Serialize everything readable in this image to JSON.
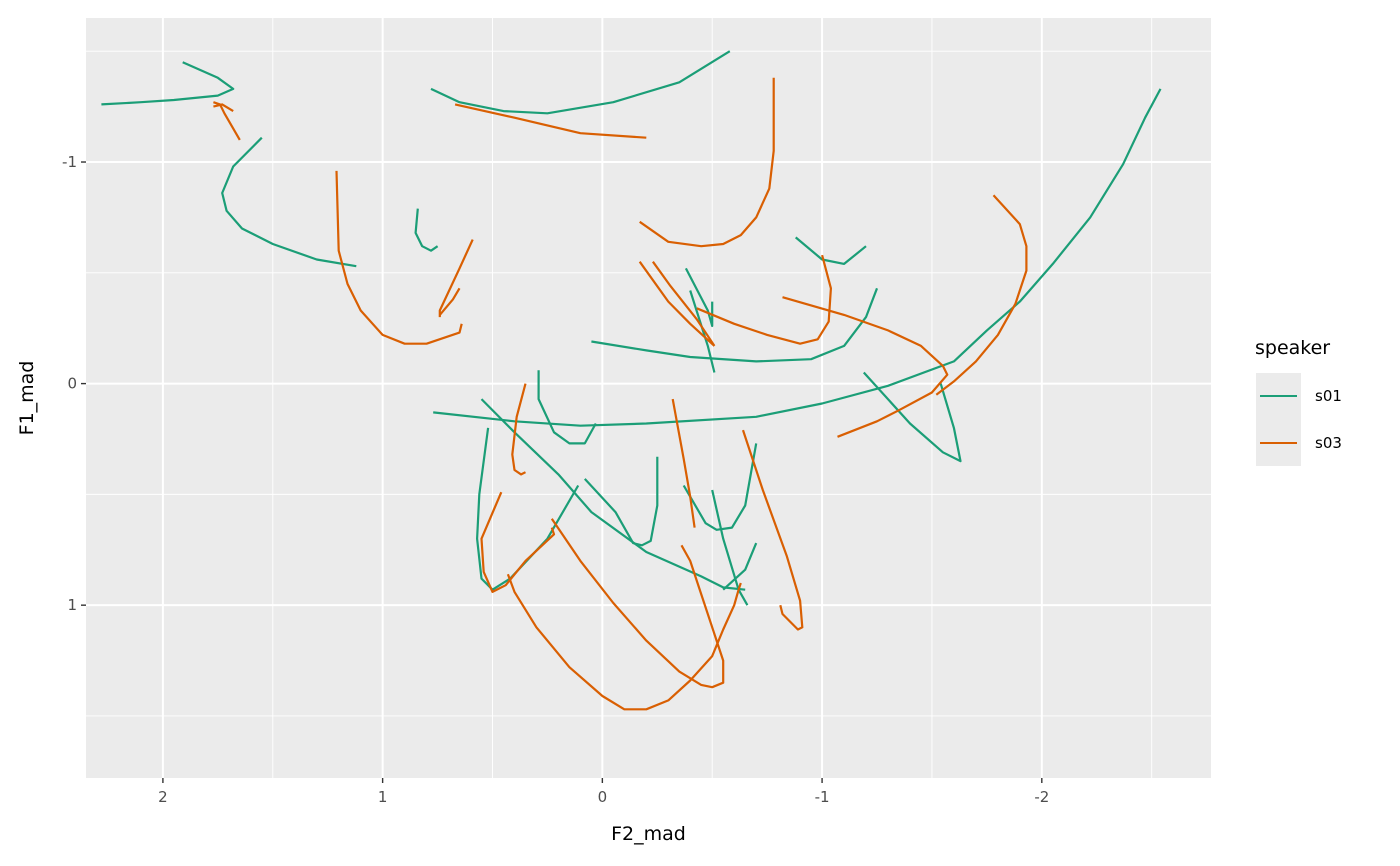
{
  "chart_data": {
    "type": "line",
    "title": "",
    "xlabel": "F2_mad",
    "ylabel": "F1_mad",
    "x_reversed": true,
    "y_reversed": true,
    "xlim": [
      2.35,
      -2.77
    ],
    "ylim": [
      -1.65,
      1.78
    ],
    "x_ticks": [
      2,
      1,
      0,
      -1,
      -2
    ],
    "x_tick_labels": [
      "2",
      "1",
      "0",
      "-1",
      "-2"
    ],
    "y_ticks": [
      -1,
      0,
      1
    ],
    "y_tick_labels": [
      "-1",
      "0",
      "1"
    ],
    "grid": true,
    "legend": {
      "title": "speaker",
      "position": "right",
      "entries": [
        {
          "name": "s01",
          "color": "#1b9e77"
        },
        {
          "name": "s03",
          "color": "#d95f02"
        }
      ]
    },
    "series": [
      {
        "name": "s01",
        "color": "#1b9e77",
        "tracks": [
          [
            [
              1.91,
              -1.45
            ],
            [
              1.75,
              -1.38
            ],
            [
              1.68,
              -1.33
            ],
            [
              1.75,
              -1.3
            ],
            [
              1.95,
              -1.28
            ],
            [
              2.1,
              -1.27
            ],
            [
              2.28,
              -1.26
            ]
          ],
          [
            [
              1.55,
              -1.11
            ],
            [
              1.68,
              -0.98
            ],
            [
              1.73,
              -0.86
            ],
            [
              1.71,
              -0.78
            ],
            [
              1.64,
              -0.7
            ],
            [
              1.5,
              -0.63
            ],
            [
              1.3,
              -0.56
            ],
            [
              1.12,
              -0.53
            ]
          ],
          [
            [
              0.78,
              -1.33
            ],
            [
              0.65,
              -1.27
            ],
            [
              0.45,
              -1.23
            ],
            [
              0.25,
              -1.22
            ],
            [
              -0.05,
              -1.27
            ],
            [
              -0.35,
              -1.36
            ],
            [
              -0.58,
              -1.5
            ]
          ],
          [
            [
              0.84,
              -0.79
            ],
            [
              0.85,
              -0.68
            ],
            [
              0.82,
              -0.62
            ],
            [
              0.78,
              -0.6
            ],
            [
              0.75,
              -0.62
            ]
          ],
          [
            [
              0.77,
              0.13
            ],
            [
              0.4,
              0.17
            ],
            [
              0.1,
              0.19
            ],
            [
              -0.2,
              0.18
            ],
            [
              -0.7,
              0.15
            ],
            [
              -1.0,
              0.09
            ],
            [
              -1.3,
              0.01
            ],
            [
              -1.6,
              -0.1
            ],
            [
              -1.75,
              -0.24
            ],
            [
              -1.9,
              -0.37
            ],
            [
              -2.05,
              -0.54
            ],
            [
              -2.22,
              -0.75
            ],
            [
              -2.37,
              -0.99
            ],
            [
              -2.47,
              -1.2
            ],
            [
              -2.54,
              -1.33
            ]
          ],
          [
            [
              0.55,
              0.07
            ],
            [
              0.4,
              0.22
            ],
            [
              0.2,
              0.41
            ],
            [
              0.05,
              0.58
            ],
            [
              -0.2,
              0.76
            ],
            [
              -0.45,
              0.87
            ],
            [
              -0.55,
              0.92
            ],
            [
              -0.65,
              0.93
            ]
          ],
          [
            [
              0.29,
              -0.06
            ],
            [
              0.29,
              0.07
            ],
            [
              0.22,
              0.22
            ],
            [
              0.15,
              0.27
            ],
            [
              0.08,
              0.27
            ],
            [
              0.03,
              0.18
            ]
          ],
          [
            [
              0.52,
              0.2
            ],
            [
              0.56,
              0.5
            ],
            [
              0.57,
              0.7
            ],
            [
              0.55,
              0.88
            ],
            [
              0.5,
              0.93
            ],
            [
              0.42,
              0.88
            ],
            [
              0.25,
              0.7
            ],
            [
              0.11,
              0.46
            ]
          ],
          [
            [
              0.08,
              0.43
            ],
            [
              -0.06,
              0.58
            ],
            [
              -0.14,
              0.72
            ],
            [
              -0.18,
              0.73
            ],
            [
              -0.22,
              0.71
            ],
            [
              -0.25,
              0.55
            ],
            [
              -0.25,
              0.33
            ]
          ],
          [
            [
              -0.37,
              0.46
            ],
            [
              -0.47,
              0.63
            ],
            [
              -0.52,
              0.66
            ],
            [
              -0.59,
              0.65
            ],
            [
              -0.65,
              0.55
            ],
            [
              -0.7,
              0.27
            ]
          ],
          [
            [
              -0.5,
              0.48
            ],
            [
              -0.55,
              0.7
            ],
            [
              -0.62,
              0.93
            ],
            [
              -0.66,
              1.0
            ]
          ],
          [
            [
              -0.7,
              0.72
            ],
            [
              -0.65,
              0.84
            ],
            [
              -0.55,
              0.93
            ]
          ],
          [
            [
              -0.38,
              -0.52
            ],
            [
              -0.48,
              -0.33
            ],
            [
              -0.5,
              -0.26
            ],
            [
              -0.5,
              -0.37
            ]
          ],
          [
            [
              -0.4,
              -0.42
            ],
            [
              -0.48,
              -0.17
            ],
            [
              -0.51,
              -0.05
            ]
          ],
          [
            [
              -1.25,
              -0.43
            ],
            [
              -1.2,
              -0.3
            ],
            [
              -1.1,
              -0.17
            ],
            [
              -0.95,
              -0.11
            ],
            [
              -0.7,
              -0.1
            ],
            [
              -0.4,
              -0.12
            ],
            [
              -0.2,
              -0.15
            ],
            [
              0.05,
              -0.19
            ]
          ],
          [
            [
              -0.88,
              -0.66
            ],
            [
              -1.0,
              -0.56
            ],
            [
              -1.1,
              -0.54
            ],
            [
              -1.2,
              -0.62
            ]
          ],
          [
            [
              -1.19,
              -0.05
            ],
            [
              -1.4,
              0.18
            ],
            [
              -1.55,
              0.31
            ],
            [
              -1.63,
              0.35
            ],
            [
              -1.6,
              0.2
            ],
            [
              -1.54,
              0.0
            ]
          ]
        ]
      },
      {
        "name": "s03",
        "color": "#d95f02",
        "tracks": [
          [
            [
              1.77,
              -1.27
            ],
            [
              1.74,
              -1.26
            ],
            [
              1.72,
              -1.22
            ],
            [
              1.65,
              -1.1
            ]
          ],
          [
            [
              1.68,
              -1.23
            ],
            [
              1.73,
              -1.26
            ],
            [
              1.77,
              -1.25
            ]
          ],
          [
            [
              0.67,
              -1.26
            ],
            [
              0.4,
              -1.2
            ],
            [
              0.1,
              -1.13
            ],
            [
              -0.2,
              -1.11
            ]
          ],
          [
            [
              1.21,
              -0.96
            ],
            [
              1.2,
              -0.6
            ],
            [
              1.16,
              -0.45
            ],
            [
              1.1,
              -0.33
            ],
            [
              1.0,
              -0.22
            ],
            [
              0.9,
              -0.18
            ],
            [
              0.8,
              -0.18
            ],
            [
              0.65,
              -0.23
            ],
            [
              0.64,
              -0.27
            ]
          ],
          [
            [
              0.59,
              -0.65
            ],
            [
              0.65,
              -0.52
            ],
            [
              0.74,
              -0.33
            ],
            [
              0.74,
              -0.3
            ]
          ],
          [
            [
              0.74,
              -0.31
            ],
            [
              0.68,
              -0.38
            ],
            [
              0.65,
              -0.43
            ]
          ],
          [
            [
              -0.78,
              -1.38
            ],
            [
              -0.78,
              -1.05
            ],
            [
              -0.76,
              -0.88
            ],
            [
              -0.7,
              -0.75
            ],
            [
              -0.63,
              -0.67
            ],
            [
              -0.55,
              -0.63
            ],
            [
              -0.45,
              -0.62
            ],
            [
              -0.3,
              -0.64
            ],
            [
              -0.17,
              -0.73
            ]
          ],
          [
            [
              -0.17,
              -0.55
            ],
            [
              -0.3,
              -0.37
            ],
            [
              -0.4,
              -0.27
            ],
            [
              -0.51,
              -0.17
            ]
          ],
          [
            [
              -0.23,
              -0.55
            ],
            [
              -0.31,
              -0.44
            ],
            [
              -0.43,
              -0.29
            ],
            [
              -0.51,
              -0.17
            ]
          ],
          [
            [
              -0.43,
              -0.34
            ],
            [
              -0.6,
              -0.27
            ],
            [
              -0.75,
              -0.22
            ],
            [
              -0.9,
              -0.18
            ],
            [
              -0.98,
              -0.2
            ],
            [
              -1.03,
              -0.28
            ],
            [
              -1.04,
              -0.43
            ],
            [
              -1.0,
              -0.58
            ]
          ],
          [
            [
              -0.82,
              -0.39
            ],
            [
              -1.1,
              -0.31
            ],
            [
              -1.3,
              -0.24
            ],
            [
              -1.45,
              -0.17
            ],
            [
              -1.55,
              -0.08
            ],
            [
              -1.57,
              -0.04
            ],
            [
              -1.5,
              0.04
            ],
            [
              -1.35,
              0.12
            ],
            [
              -1.25,
              0.17
            ],
            [
              -1.07,
              0.24
            ]
          ],
          [
            [
              -1.78,
              -0.85
            ],
            [
              -1.9,
              -0.72
            ],
            [
              -1.93,
              -0.62
            ],
            [
              -1.93,
              -0.51
            ],
            [
              -1.88,
              -0.36
            ],
            [
              -1.8,
              -0.22
            ],
            [
              -1.7,
              -0.1
            ],
            [
              -1.6,
              -0.01
            ],
            [
              -1.52,
              0.05
            ]
          ],
          [
            [
              0.35,
              0.0
            ],
            [
              0.39,
              0.15
            ],
            [
              0.41,
              0.32
            ],
            [
              0.4,
              0.39
            ],
            [
              0.37,
              0.41
            ],
            [
              0.35,
              0.4
            ]
          ],
          [
            [
              0.46,
              0.49
            ],
            [
              0.55,
              0.7
            ],
            [
              0.54,
              0.85
            ],
            [
              0.5,
              0.94
            ],
            [
              0.44,
              0.91
            ],
            [
              0.35,
              0.8
            ],
            [
              0.22,
              0.68
            ],
            [
              0.23,
              0.65
            ]
          ],
          [
            [
              0.43,
              0.86
            ],
            [
              0.4,
              0.94
            ],
            [
              0.3,
              1.1
            ],
            [
              0.15,
              1.28
            ],
            [
              0.0,
              1.41
            ],
            [
              -0.1,
              1.47
            ],
            [
              -0.2,
              1.47
            ],
            [
              -0.3,
              1.43
            ],
            [
              -0.4,
              1.34
            ],
            [
              -0.5,
              1.23
            ],
            [
              -0.55,
              1.11
            ],
            [
              -0.6,
              1.0
            ],
            [
              -0.62,
              0.93
            ],
            [
              -0.63,
              0.9
            ]
          ],
          [
            [
              0.23,
              0.61
            ],
            [
              0.1,
              0.8
            ],
            [
              -0.05,
              0.99
            ],
            [
              -0.2,
              1.16
            ],
            [
              -0.35,
              1.3
            ],
            [
              -0.45,
              1.36
            ],
            [
              -0.5,
              1.37
            ],
            [
              -0.55,
              1.35
            ],
            [
              -0.55,
              1.25
            ],
            [
              -0.5,
              1.1
            ],
            [
              -0.45,
              0.95
            ],
            [
              -0.4,
              0.8
            ],
            [
              -0.36,
              0.73
            ]
          ],
          [
            [
              -0.32,
              0.07
            ],
            [
              -0.37,
              0.34
            ],
            [
              -0.4,
              0.51
            ],
            [
              -0.42,
              0.65
            ]
          ],
          [
            [
              -0.64,
              0.21
            ],
            [
              -0.73,
              0.48
            ],
            [
              -0.84,
              0.78
            ],
            [
              -0.9,
              0.98
            ],
            [
              -0.91,
              1.1
            ],
            [
              -0.89,
              1.11
            ],
            [
              -0.82,
              1.04
            ],
            [
              -0.81,
              1.0
            ]
          ]
        ]
      }
    ]
  }
}
